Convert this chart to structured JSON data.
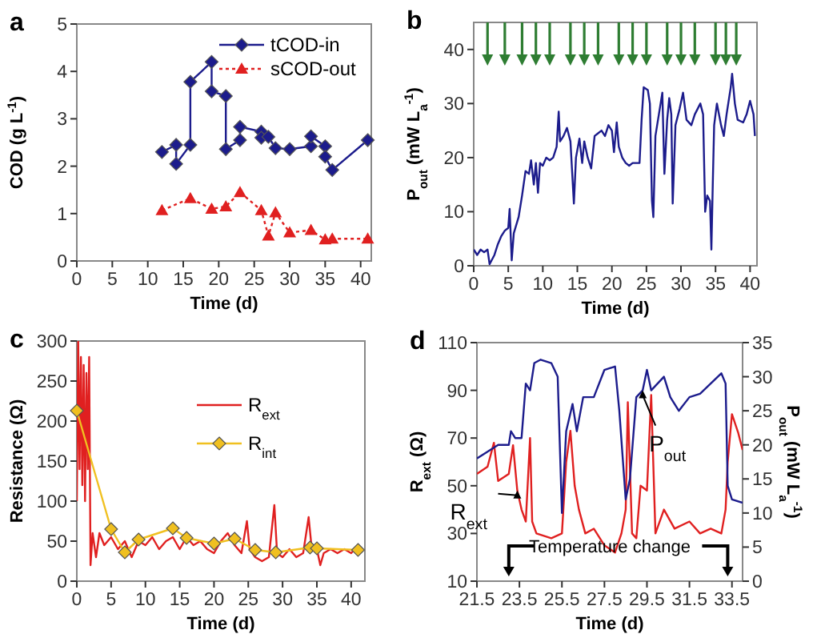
{
  "chart_data": [
    {
      "type": "line",
      "title": "a",
      "xlabel": "Time (d)",
      "ylabel": "COD (g L$^{-1}$)",
      "xlim": [
        0,
        41.5
      ],
      "ylim": [
        0,
        5
      ],
      "xticks": [
        0,
        5,
        10,
        15,
        20,
        25,
        30,
        35,
        40
      ],
      "yticks": [
        0,
        1,
        2,
        3,
        4,
        5
      ],
      "legend": "top right",
      "series": [
        {
          "name": "tCOD-in",
          "color": "#1c1c8c",
          "marker": "diamond",
          "line_style": "solid",
          "x": [
            12,
            14,
            14,
            16,
            16,
            19,
            19,
            21,
            21,
            23,
            23,
            26,
            26,
            27,
            28,
            30,
            33,
            33,
            35,
            35,
            36,
            41
          ],
          "values": [
            2.3,
            2.45,
            2.05,
            2.45,
            3.78,
            4.2,
            3.58,
            3.48,
            2.36,
            2.55,
            2.83,
            2.73,
            2.6,
            2.62,
            2.38,
            2.36,
            2.42,
            2.63,
            2.42,
            2.2,
            1.92,
            2.55
          ]
        },
        {
          "name": "sCOD-out",
          "color": "#e02020",
          "marker": "triangle",
          "line_style": "dotted",
          "x": [
            12,
            16,
            19,
            21,
            23,
            26,
            27,
            28,
            30,
            33,
            35,
            36,
            41
          ],
          "values": [
            1.07,
            1.32,
            1.1,
            1.15,
            1.45,
            1.07,
            0.53,
            1.02,
            0.6,
            0.65,
            0.45,
            0.47,
            0.47
          ]
        }
      ]
    },
    {
      "type": "line",
      "title": "b",
      "xlabel": "Time (d)",
      "ylabel": "P$_{out}$ (mW L$_{a}$$^{-1}$)",
      "xlim": [
        0,
        41
      ],
      "ylim": [
        0,
        45
      ],
      "xticks": [
        0,
        5,
        10,
        15,
        20,
        25,
        30,
        35,
        40
      ],
      "yticks": [
        0,
        10,
        20,
        30,
        40
      ],
      "ref_lines": [
        {
          "axis": "x",
          "value": 2,
          "color": "#2e7d32"
        },
        {
          "axis": "x",
          "value": 4.5,
          "color": "#2e7d32"
        },
        {
          "axis": "x",
          "value": 7,
          "color": "#2e7d32"
        },
        {
          "axis": "x",
          "value": 9,
          "color": "#2e7d32"
        },
        {
          "axis": "x",
          "value": 11,
          "color": "#2e7d32"
        },
        {
          "axis": "x",
          "value": 14,
          "color": "#2e7d32"
        },
        {
          "axis": "x",
          "value": 16,
          "color": "#2e7d32"
        },
        {
          "axis": "x",
          "value": 18,
          "color": "#2e7d32"
        },
        {
          "axis": "x",
          "value": 21,
          "color": "#2e7d32"
        },
        {
          "axis": "x",
          "value": 23,
          "color": "#2e7d32"
        },
        {
          "axis": "x",
          "value": 25,
          "color": "#2e7d32"
        },
        {
          "axis": "x",
          "value": 28,
          "color": "#2e7d32"
        },
        {
          "axis": "x",
          "value": 30,
          "color": "#2e7d32"
        },
        {
          "axis": "x",
          "value": 32,
          "color": "#2e7d32"
        },
        {
          "axis": "x",
          "value": 35,
          "color": "#2e7d32"
        },
        {
          "axis": "x",
          "value": 36.5,
          "color": "#2e7d32"
        },
        {
          "axis": "x",
          "value": 38,
          "color": "#2e7d32"
        }
      ],
      "series": [
        {
          "color": "#1c1c8c",
          "marker": "none",
          "x": [
            0,
            0.5,
            1,
            1.5,
            2,
            2.3,
            3,
            3.5,
            4,
            4.5,
            5,
            5.2,
            5.5,
            5.8,
            6.5,
            7,
            7.5,
            8,
            8.3,
            8.7,
            9,
            9.3,
            9.6,
            10,
            10.5,
            11,
            11.5,
            12,
            12.3,
            12.5,
            13,
            13.5,
            14,
            14.5,
            14.8,
            15.3,
            15.7,
            16,
            16.5,
            17,
            17.5,
            18,
            18.5,
            19,
            19.5,
            20,
            20.3,
            20.7,
            21,
            21.5,
            22,
            22.5,
            23,
            23.5,
            24,
            24.3,
            24.6,
            25.2,
            25.5,
            25.8,
            26,
            26.3,
            26.8,
            27.3,
            27.6,
            28,
            28.3,
            28.6,
            28.8,
            29.2,
            29.8,
            30.3,
            30.8,
            31.5,
            32,
            32.8,
            33.2,
            33.5,
            33.8,
            34.2,
            34.4,
            34.6,
            34.8,
            35.2,
            35.8,
            36.2,
            36.6,
            37.2,
            37.4,
            37.8,
            38.2,
            39,
            39.5,
            40,
            40.5,
            40.7
          ],
          "values": [
            3,
            2,
            3,
            2.5,
            3,
            0.3,
            2,
            4,
            5.5,
            6.5,
            7,
            10.5,
            1,
            6,
            9,
            13,
            17.5,
            17,
            19.5,
            15,
            19,
            13.5,
            19,
            18.5,
            20,
            19.5,
            20,
            22,
            28.5,
            23,
            24,
            25.5,
            23,
            11.5,
            20,
            23.5,
            19,
            23,
            20,
            18,
            24,
            24.5,
            25,
            24,
            26,
            25,
            21,
            26.5,
            22,
            20,
            19,
            18.5,
            19,
            19,
            19,
            27,
            33,
            32.5,
            30,
            12,
            9,
            24,
            28,
            32,
            17,
            27,
            31,
            28,
            11.5,
            26,
            29,
            32,
            27,
            26,
            28,
            30,
            28,
            10,
            13,
            12,
            3,
            15,
            26,
            30,
            26,
            24,
            28,
            33,
            35.5,
            30,
            27,
            26.5,
            28,
            30.5,
            28,
            24
          ]
        }
      ]
    },
    {
      "type": "line",
      "title": "c",
      "xlabel": "Time (d)",
      "ylabel": "Resistance (Ω)",
      "xlim": [
        0,
        42
      ],
      "ylim": [
        0,
        300
      ],
      "xticks": [
        0,
        5,
        10,
        15,
        20,
        25,
        30,
        35,
        40
      ],
      "yticks": [
        0,
        50,
        100,
        150,
        200,
        250,
        300
      ],
      "legend": "right",
      "series": [
        {
          "name": "R$_{ext}$",
          "color": "#e02020",
          "marker": "none",
          "line_style": "solid",
          "x": [
            0,
            0.2,
            0.4,
            0.6,
            0.8,
            1,
            1.2,
            1.4,
            1.6,
            1.8,
            2,
            2.3,
            2.8,
            3.3,
            4,
            5,
            6,
            7,
            8,
            9,
            10,
            11,
            12,
            13,
            14,
            15,
            16,
            17,
            18,
            19,
            20,
            21,
            22,
            23,
            24,
            24.8,
            25.2,
            26,
            27,
            28,
            28.8,
            29.2,
            30,
            31,
            32,
            33,
            33.8,
            34.2,
            35,
            35.5,
            36,
            37,
            38,
            39,
            40,
            40.5
          ],
          "values": [
            100,
            300,
            140,
            280,
            120,
            270,
            100,
            260,
            140,
            280,
            20,
            60,
            30,
            60,
            45,
            55,
            40,
            50,
            30,
            50,
            45,
            55,
            40,
            50,
            55,
            40,
            55,
            45,
            50,
            40,
            35,
            50,
            60,
            45,
            35,
            75,
            40,
            30,
            25,
            30,
            95,
            35,
            30,
            40,
            30,
            35,
            80,
            45,
            40,
            20,
            35,
            40,
            35,
            40,
            35,
            40
          ]
        },
        {
          "name": "R$_{int}$",
          "color": "#f0c020",
          "marker": "diamond",
          "line_style": "solid",
          "x": [
            0,
            5,
            7,
            9,
            14,
            16,
            20,
            23,
            26,
            29,
            34,
            35,
            41
          ],
          "values": [
            213,
            65,
            36,
            52,
            66,
            54,
            47,
            53,
            39,
            36,
            42,
            41,
            39
          ]
        }
      ]
    },
    {
      "type": "line",
      "title": "d",
      "xlabel": "Time (d)",
      "ylabel": "R$_{ext}$ (Ω)",
      "y2label": "P$_{out}$ (mW L$_{a}$$^{-1}$)",
      "xlim": [
        21.5,
        34
      ],
      "ylim": [
        10,
        110
      ],
      "y2lim": [
        0,
        35
      ],
      "xticks": [
        21.5,
        23.5,
        25.5,
        27.5,
        29.5,
        31.5,
        33.5
      ],
      "yticks": [
        10,
        30,
        50,
        70,
        90,
        110
      ],
      "y2ticks": [
        0,
        5,
        10,
        15,
        20,
        25,
        30,
        35
      ],
      "ref_lines": [
        {
          "axis": "x",
          "value": 23,
          "color": "#000000"
        },
        {
          "axis": "x",
          "value": 33.3,
          "color": "#000000"
        }
      ],
      "annotations": [
        {
          "text": "P$_{out}$",
          "x": 29.3,
          "y": 90
        },
        {
          "text": "R$_{ext}$",
          "x": 23.4,
          "y": 48
        },
        "Temperature change"
      ],
      "series": [
        {
          "color": "#e02020",
          "marker": "none",
          "x": [
            21.5,
            22,
            22.3,
            22.5,
            23,
            23.2,
            23.4,
            23.6,
            23.8,
            24,
            24.1,
            24.3,
            25,
            25.5,
            25.7,
            25.9,
            26.1,
            26.3,
            26.6,
            27,
            27.5,
            28,
            28.3,
            28.5,
            28.6,
            28.8,
            29,
            29.2,
            29.5,
            29.7,
            29.9,
            30.3,
            30.8,
            31.5,
            32,
            32.5,
            33,
            33.2,
            33.3,
            33.5,
            33.8,
            34
          ],
          "values": [
            55,
            58,
            68,
            52,
            55,
            67,
            48,
            40,
            35,
            70,
            35,
            30,
            28,
            30,
            60,
            73,
            50,
            40,
            30,
            32,
            25,
            22,
            30,
            40,
            85,
            30,
            28,
            50,
            48,
            88,
            30,
            40,
            32,
            35,
            30,
            32,
            30,
            40,
            60,
            80,
            72,
            65
          ]
        },
        {
          "color": "#1c1c8c",
          "marker": "none",
          "axis": "y2",
          "x": [
            21.5,
            22,
            22.5,
            23,
            23.1,
            23.3,
            23.6,
            23.8,
            24,
            24.2,
            24.5,
            25,
            25.3,
            25.5,
            25.7,
            26,
            26.2,
            26.5,
            27,
            27.5,
            28,
            28.2,
            28.5,
            28.7,
            29,
            29.3,
            29.5,
            29.7,
            30,
            30.3,
            30.6,
            31,
            31.5,
            32,
            32.5,
            33,
            33.2,
            33.3,
            33.5,
            34
          ],
          "values": [
            18,
            19,
            20,
            20,
            22,
            21,
            21,
            29,
            28,
            32,
            32.5,
            32,
            30,
            10,
            22,
            26,
            22,
            27,
            27,
            31,
            31.5,
            25,
            12,
            15,
            27,
            28,
            31,
            28,
            29,
            30,
            27,
            25,
            27,
            27.5,
            29,
            30.5,
            29,
            14,
            12,
            11.5
          ]
        }
      ]
    }
  ]
}
